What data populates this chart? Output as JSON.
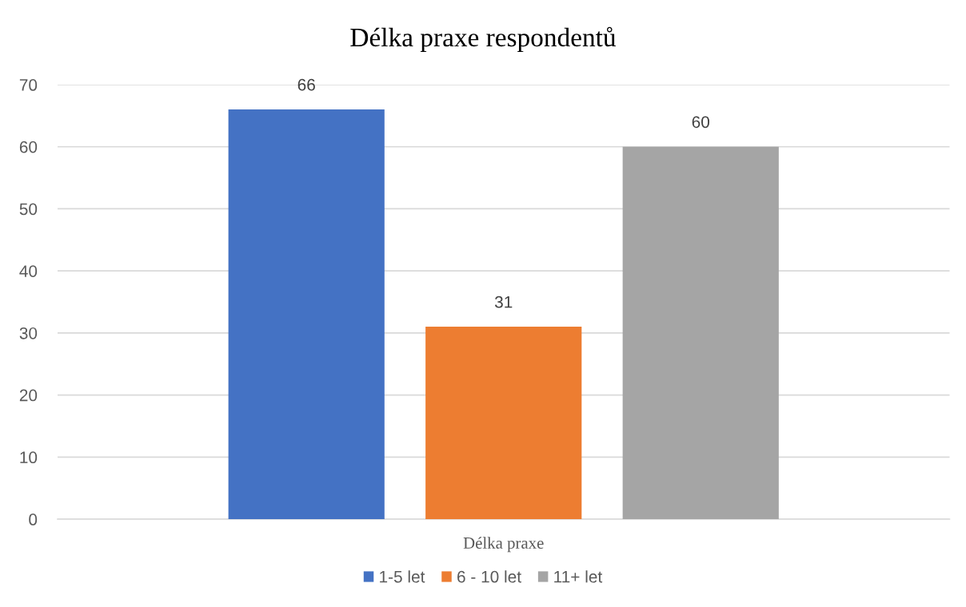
{
  "chart_data": {
    "type": "bar",
    "title": "Délka praxe respondentů",
    "categories": [
      "Délka praxe"
    ],
    "series": [
      {
        "name": "1-5 let",
        "color": "#4472c4",
        "values": [
          66
        ]
      },
      {
        "name": "6 - 10 let",
        "color": "#ed7d31",
        "values": [
          31
        ]
      },
      {
        "name": "11+ let",
        "color": "#a5a5a5",
        "values": [
          60
        ]
      }
    ],
    "ylim": [
      0,
      70
    ],
    "yticks": [
      0,
      10,
      20,
      30,
      40,
      50,
      60,
      70
    ],
    "grid": "y",
    "legend": "bottom",
    "data_labels": true
  }
}
